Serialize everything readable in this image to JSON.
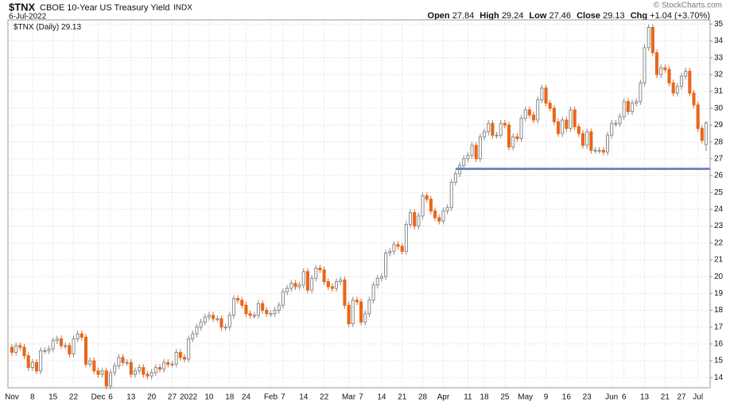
{
  "chart_data": {
    "type": "candlestick",
    "symbol": "$TNX",
    "title": "CBOE 10-Year US Treasury Yield",
    "exchange": "INDX",
    "date": "6-Jul-2022",
    "watermark": "© StockCharts.com",
    "legend": "$TNX (Daily)",
    "header_labels": [
      "Open",
      "High",
      "Low",
      "Close",
      "Chg"
    ],
    "change": 1.04,
    "change_label": "+1.04",
    "change_percent": 3.7,
    "change_percent_label": "(+3.70%)",
    "up_color": "#8a8a8a",
    "down_color": "#e8661c",
    "reference_line": {
      "value": 26.4,
      "color": "#6e8db5"
    },
    "ylim": [
      13.4,
      35.25
    ],
    "yticks": [
      14,
      15,
      16,
      17,
      18,
      19,
      20,
      21,
      22,
      23,
      24,
      25,
      26,
      27,
      28,
      29,
      30,
      31,
      32,
      33,
      34,
      35
    ],
    "grid": true,
    "categories": [
      "Nov",
      null,
      null,
      null,
      null,
      "8",
      null,
      null,
      null,
      null,
      "15",
      null,
      null,
      null,
      null,
      "22",
      null,
      null,
      null,
      null,
      null,
      "Dec",
      null,
      null,
      "6",
      null,
      null,
      null,
      null,
      "13",
      null,
      null,
      null,
      null,
      "20",
      null,
      null,
      null,
      null,
      "27",
      null,
      null,
      null,
      "2022",
      null,
      null,
      null,
      null,
      "10",
      null,
      null,
      null,
      null,
      "18",
      null,
      null,
      null,
      "24",
      null,
      null,
      null,
      null,
      null,
      "Feb",
      null,
      null,
      "7",
      null,
      null,
      null,
      null,
      "14",
      null,
      null,
      null,
      null,
      "22",
      null,
      null,
      null,
      null,
      null,
      "Mar",
      null,
      null,
      "7",
      null,
      null,
      null,
      null,
      "14",
      null,
      null,
      null,
      null,
      "21",
      null,
      null,
      null,
      null,
      "28",
      null,
      null,
      null,
      null,
      "Apr",
      null,
      null,
      null,
      null,
      null,
      "11",
      null,
      null,
      null,
      "18",
      null,
      null,
      null,
      null,
      "25",
      null,
      null,
      null,
      null,
      "May",
      null,
      null,
      null,
      null,
      "9",
      null,
      null,
      null,
      null,
      "16",
      null,
      null,
      null,
      null,
      "23",
      null,
      null,
      null,
      null,
      null,
      "Jun",
      null,
      null,
      "6",
      null,
      null,
      null,
      null,
      "13",
      null,
      null,
      null,
      null,
      "21",
      null,
      null,
      null,
      "27",
      null,
      null,
      null,
      "Jul",
      null,
      null
    ],
    "open": [
      15.8,
      15.5,
      15.9,
      15.8,
      15.3,
      14.6,
      14.9,
      14.4,
      15.6,
      15.6,
      15.7,
      16.2,
      16.3,
      15.9,
      15.9,
      15.4,
      16.3,
      16.6,
      16.4,
      14.8,
      15.0,
      14.4,
      14.2,
      14.4,
      13.5,
      14.3,
      14.7,
      15.2,
      14.9,
      14.9,
      14.2,
      14.4,
      14.6,
      14.2,
      14.1,
      14.3,
      14.6,
      14.5,
      14.9,
      14.8,
      14.8,
      15.5,
      15.2,
      15.1,
      16.3,
      16.6,
      17.0,
      17.3,
      17.6,
      17.7,
      17.5,
      17.5,
      17.0,
      17.0,
      17.7,
      18.7,
      18.6,
      18.3,
      17.8,
      17.7,
      17.7,
      18.4,
      18.0,
      17.8,
      17.8,
      18.0,
      18.3,
      19.1,
      19.3,
      19.6,
      19.4,
      19.5,
      20.3,
      19.2,
      19.9,
      20.5,
      20.4,
      19.7,
      19.4,
      19.3,
      19.7,
      19.8,
      18.3,
      17.2,
      18.6,
      18.5,
      17.3,
      17.8,
      18.6,
      19.5,
      19.9,
      20.0,
      21.4,
      21.5,
      21.9,
      21.8,
      21.5,
      23.1,
      23.8,
      23.0,
      23.6,
      24.8,
      24.6,
      23.9,
      23.5,
      23.3,
      23.9,
      24.1,
      25.6,
      26.1,
      26.6,
      27.0,
      27.2,
      27.8,
      27.0,
      28.3,
      28.6,
      29.1,
      28.4,
      28.4,
      29.1,
      29.0,
      27.7,
      28.3,
      28.2,
      29.4,
      29.9,
      29.6,
      29.3,
      30.5,
      31.2,
      30.3,
      30.0,
      29.2,
      28.5,
      29.3,
      28.8,
      29.9,
      28.9,
      28.5,
      27.8,
      28.6,
      27.5,
      27.5,
      27.5,
      27.4,
      28.4,
      29.1,
      29.1,
      29.5,
      30.4,
      29.8,
      30.3,
      30.4,
      31.5,
      33.6,
      34.8,
      33.3,
      32.0,
      32.4,
      32.3,
      31.5,
      30.9,
      31.3,
      31.9,
      32.2,
      30.9,
      30.2,
      28.8,
      27.84
    ],
    "high": [
      16.0,
      16.1,
      16.1,
      16.0,
      15.5,
      15.1,
      15.1,
      15.8,
      15.8,
      15.9,
      16.4,
      16.5,
      16.5,
      16.1,
      16.1,
      16.5,
      16.8,
      16.8,
      16.6,
      15.2,
      15.2,
      14.6,
      14.6,
      14.6,
      14.5,
      14.9,
      15.4,
      15.4,
      15.1,
      15.1,
      14.6,
      14.8,
      14.8,
      14.4,
      14.5,
      14.8,
      14.8,
      15.1,
      15.1,
      15.0,
      15.7,
      15.7,
      15.4,
      16.5,
      16.8,
      17.2,
      17.5,
      17.8,
      17.9,
      17.9,
      17.7,
      17.7,
      17.2,
      17.9,
      18.9,
      18.9,
      18.8,
      18.5,
      18.0,
      17.9,
      18.6,
      18.6,
      18.2,
      18.0,
      18.2,
      18.5,
      19.3,
      19.5,
      19.8,
      19.8,
      19.7,
      20.5,
      20.5,
      20.1,
      20.7,
      20.7,
      20.6,
      19.9,
      19.6,
      19.9,
      20.0,
      20.0,
      18.5,
      18.8,
      18.8,
      18.7,
      18.0,
      18.8,
      19.7,
      20.1,
      20.2,
      21.6,
      21.7,
      22.1,
      22.1,
      22.0,
      23.3,
      24.0,
      24.0,
      23.8,
      25.0,
      25.0,
      24.8,
      24.1,
      23.7,
      24.1,
      24.3,
      25.8,
      26.3,
      26.8,
      27.2,
      27.4,
      28.0,
      28.0,
      28.5,
      28.8,
      29.3,
      29.3,
      28.6,
      29.3,
      29.3,
      29.2,
      28.5,
      28.5,
      29.6,
      30.1,
      30.1,
      29.8,
      30.7,
      31.4,
      31.4,
      30.5,
      30.2,
      29.4,
      29.5,
      29.5,
      30.1,
      30.1,
      29.1,
      28.7,
      28.8,
      28.8,
      27.7,
      27.7,
      27.7,
      28.6,
      29.3,
      29.3,
      29.7,
      30.6,
      30.6,
      30.5,
      30.6,
      31.7,
      33.8,
      35.0,
      35.0,
      33.5,
      32.6,
      32.6,
      32.5,
      31.7,
      31.5,
      32.1,
      32.4,
      32.4,
      31.1,
      30.4,
      29.0,
      29.24
    ],
    "low": [
      15.3,
      15.3,
      15.6,
      15.1,
      14.4,
      14.4,
      14.2,
      14.2,
      15.4,
      15.4,
      15.5,
      16.0,
      15.7,
      15.7,
      15.2,
      15.2,
      16.1,
      16.2,
      14.6,
      14.6,
      14.2,
      14.0,
      14.0,
      13.3,
      13.3,
      14.1,
      14.5,
      14.7,
      14.7,
      14.0,
      14.0,
      14.2,
      14.0,
      13.9,
      13.9,
      14.1,
      14.3,
      14.3,
      14.6,
      14.6,
      14.6,
      15.0,
      14.9,
      14.9,
      16.1,
      16.4,
      16.8,
      17.1,
      17.4,
      17.3,
      17.3,
      16.8,
      16.8,
      16.8,
      17.5,
      18.4,
      18.1,
      17.6,
      17.5,
      17.5,
      17.5,
      17.8,
      17.6,
      17.6,
      17.6,
      17.8,
      18.1,
      18.9,
      19.1,
      19.2,
      19.2,
      19.3,
      19.0,
      19.0,
      19.7,
      20.2,
      19.5,
      19.2,
      19.1,
      19.1,
      19.5,
      18.1,
      17.0,
      17.0,
      18.3,
      17.1,
      17.1,
      17.6,
      18.4,
      19.3,
      19.7,
      19.8,
      21.2,
      21.3,
      21.6,
      21.3,
      21.3,
      22.9,
      22.8,
      22.8,
      23.4,
      24.4,
      23.7,
      23.3,
      23.1,
      23.1,
      23.7,
      23.9,
      25.4,
      25.9,
      26.4,
      26.8,
      27.0,
      26.8,
      26.8,
      28.1,
      28.4,
      28.2,
      28.2,
      28.2,
      28.8,
      27.5,
      27.5,
      28.0,
      28.0,
      29.2,
      29.4,
      29.1,
      29.1,
      30.3,
      30.1,
      29.8,
      29.0,
      28.3,
      28.3,
      28.6,
      28.6,
      28.7,
      28.3,
      27.6,
      27.6,
      27.3,
      27.3,
      27.3,
      27.2,
      27.2,
      28.2,
      28.9,
      28.9,
      29.3,
      29.6,
      29.6,
      30.1,
      30.2,
      31.3,
      33.4,
      33.1,
      31.8,
      31.8,
      32.1,
      31.3,
      30.7,
      30.7,
      31.1,
      31.7,
      30.7,
      30.0,
      28.6,
      27.9,
      27.46
    ],
    "close": [
      15.5,
      15.9,
      15.8,
      15.3,
      14.6,
      14.9,
      14.4,
      15.6,
      15.6,
      15.7,
      16.2,
      16.3,
      15.9,
      15.9,
      15.4,
      16.3,
      16.6,
      16.4,
      14.8,
      15.0,
      14.4,
      14.2,
      14.4,
      13.5,
      14.3,
      14.7,
      15.2,
      14.9,
      14.9,
      14.2,
      14.4,
      14.6,
      14.2,
      14.1,
      14.3,
      14.6,
      14.5,
      14.9,
      14.8,
      14.8,
      15.5,
      15.2,
      15.1,
      16.3,
      16.6,
      17.0,
      17.3,
      17.6,
      17.7,
      17.5,
      17.5,
      17.0,
      17.0,
      17.7,
      18.7,
      18.6,
      18.3,
      17.8,
      17.7,
      17.7,
      18.4,
      18.0,
      17.8,
      17.8,
      18.0,
      18.3,
      19.1,
      19.3,
      19.6,
      19.4,
      19.5,
      20.3,
      19.2,
      19.9,
      20.5,
      20.4,
      19.7,
      19.4,
      19.3,
      19.7,
      19.8,
      18.3,
      17.2,
      18.6,
      18.5,
      17.3,
      17.8,
      18.6,
      19.5,
      19.9,
      20.0,
      21.4,
      21.5,
      21.9,
      21.8,
      21.5,
      23.1,
      23.8,
      23.0,
      23.6,
      24.8,
      24.6,
      23.9,
      23.5,
      23.3,
      23.9,
      24.1,
      25.6,
      26.1,
      26.6,
      27.0,
      27.2,
      27.8,
      27.0,
      28.3,
      28.6,
      29.1,
      28.4,
      28.4,
      29.1,
      29.0,
      27.7,
      28.3,
      28.2,
      29.4,
      29.9,
      29.6,
      29.3,
      30.5,
      31.2,
      30.3,
      30.0,
      29.2,
      28.5,
      29.3,
      28.8,
      29.9,
      28.9,
      28.5,
      27.8,
      28.6,
      27.5,
      27.5,
      27.5,
      27.4,
      28.4,
      29.1,
      29.1,
      29.5,
      30.4,
      29.8,
      30.3,
      30.4,
      31.5,
      33.6,
      34.8,
      33.3,
      32.0,
      32.4,
      32.3,
      31.5,
      30.9,
      31.3,
      31.9,
      32.2,
      30.9,
      30.2,
      28.8,
      28.1,
      29.13
    ]
  }
}
